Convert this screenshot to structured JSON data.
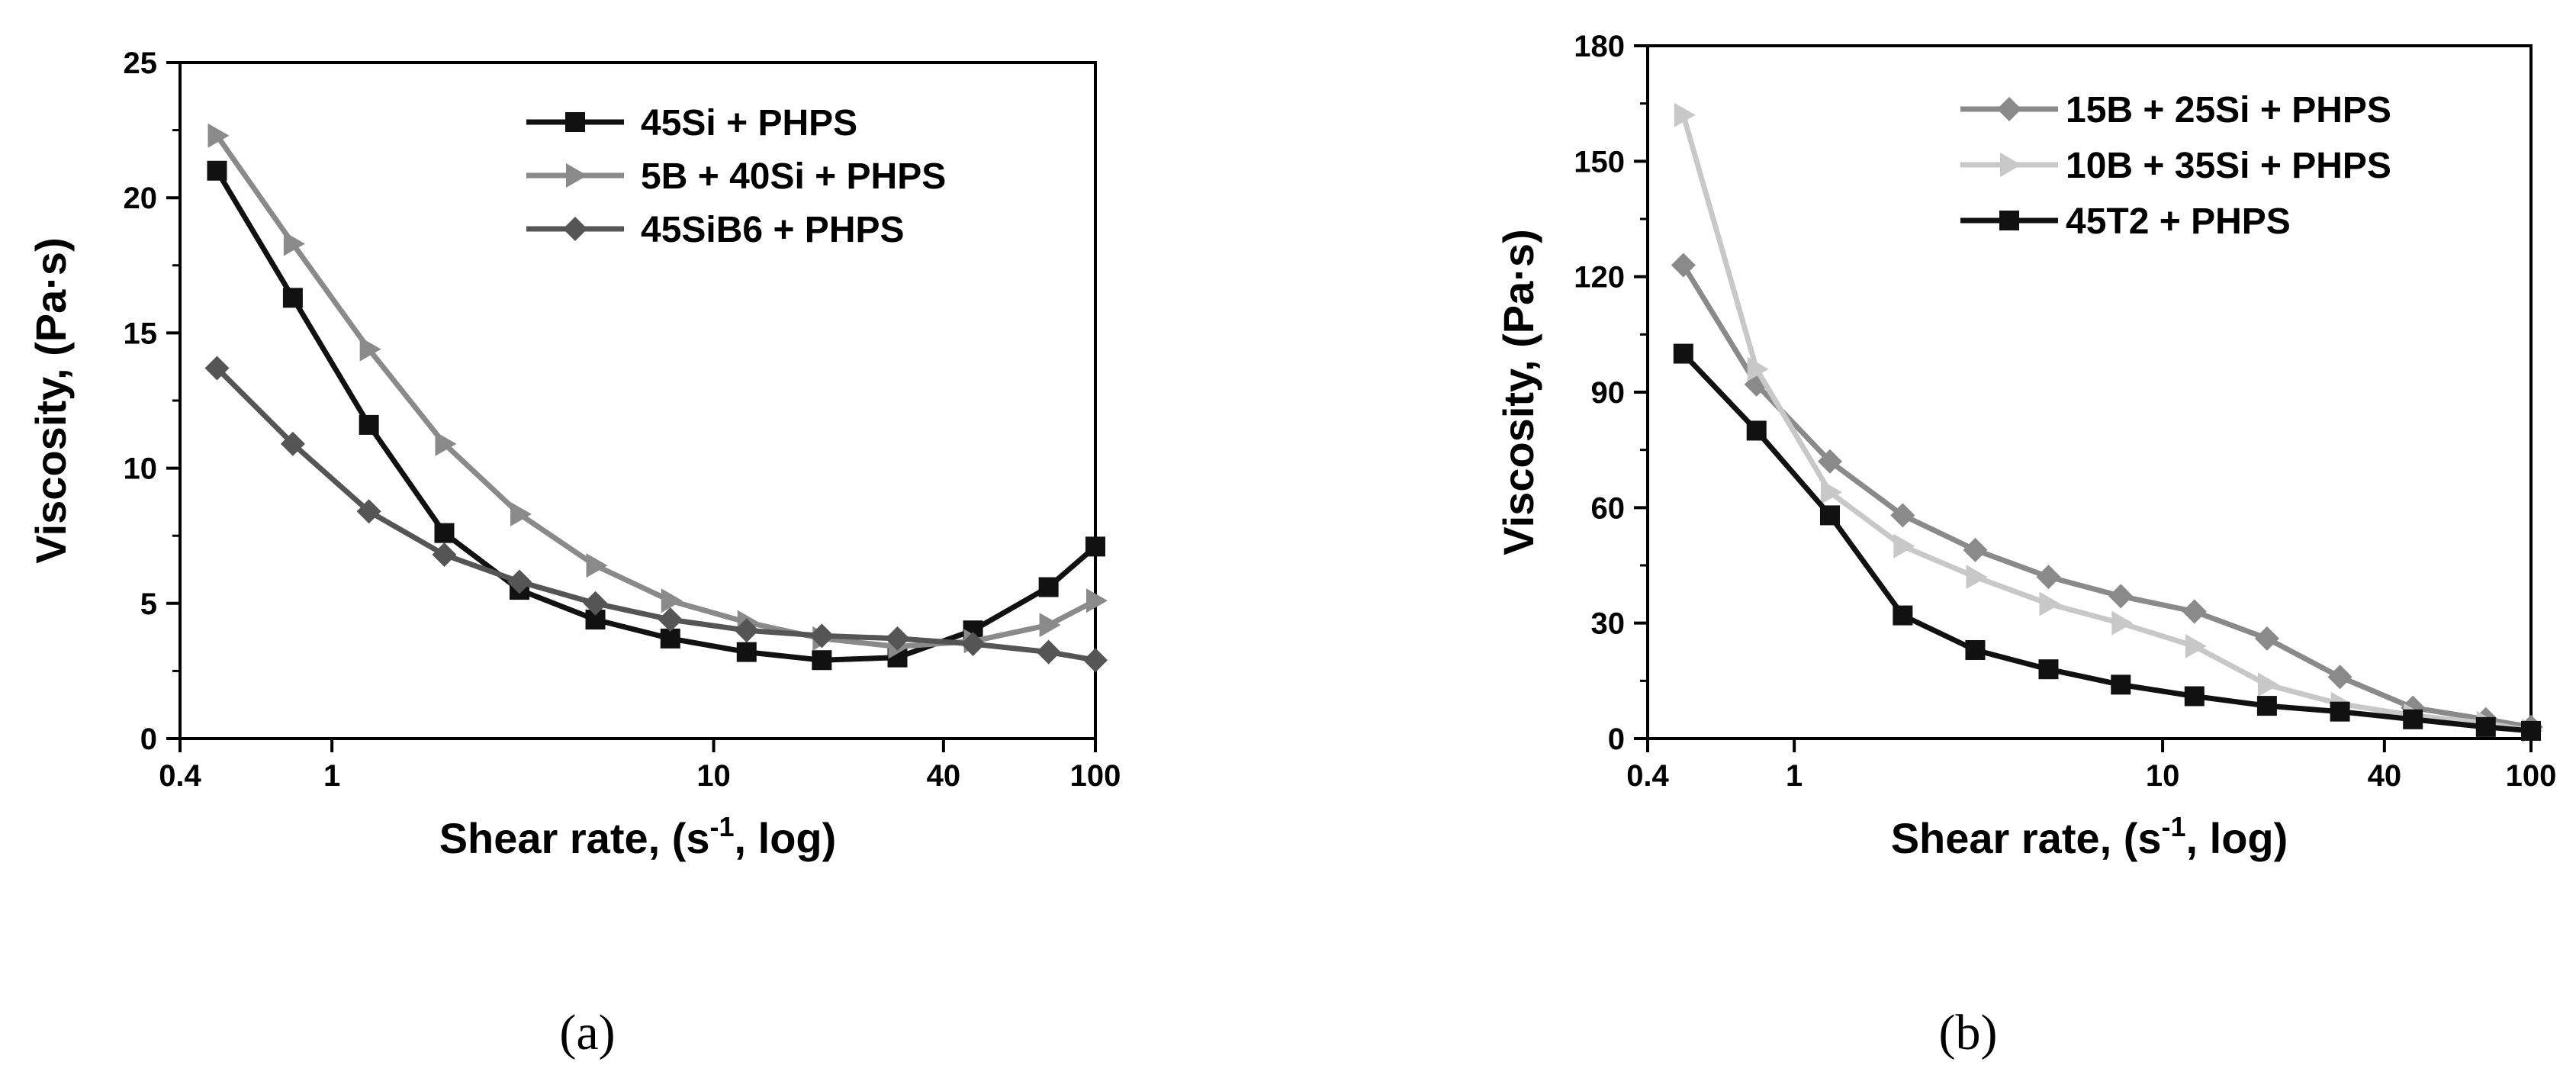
{
  "chart_data": [
    {
      "type": "line",
      "panel": "a",
      "caption": "(a)",
      "xlabel_main": "Shear rate, (s",
      "xlabel_sup": "-1",
      "xlabel_tail": ", log)",
      "ylabel": "Viscosity, (Pa·s)",
      "xscale": "log",
      "xlim": [
        0.4,
        100
      ],
      "ylim": [
        0,
        25
      ],
      "xticks": [
        0.4,
        1,
        10,
        40,
        100
      ],
      "xtick_labels": [
        "0.4",
        "1",
        "10",
        "40",
        "100"
      ],
      "yticks": [
        0,
        5,
        10,
        15,
        20,
        25
      ],
      "ytick_labels": [
        "0",
        "5",
        "10",
        "15",
        "20",
        "25"
      ],
      "legend_position": "top-right",
      "x": [
        0.5,
        0.79,
        1.25,
        1.97,
        3.1,
        4.9,
        7.7,
        12.2,
        19.2,
        30.3,
        47.8,
        75.4,
        100
      ],
      "series": [
        {
          "name": "45Si + PHPS",
          "marker": "square",
          "color": "#111111",
          "values": [
            21.0,
            16.3,
            11.6,
            7.6,
            5.5,
            4.4,
            3.7,
            3.2,
            2.9,
            3.0,
            4.0,
            5.6,
            7.1
          ]
        },
        {
          "name": "5B + 40Si + PHPS",
          "marker": "triangle-right",
          "color": "#8a8a8a",
          "values": [
            22.3,
            18.3,
            14.4,
            10.9,
            8.3,
            6.4,
            5.1,
            4.3,
            3.7,
            3.4,
            3.6,
            4.2,
            5.1
          ]
        },
        {
          "name": "45SiB6 + PHPS",
          "marker": "diamond",
          "color": "#555555",
          "values": [
            13.7,
            10.9,
            8.4,
            6.8,
            5.8,
            5.0,
            4.4,
            4.0,
            3.8,
            3.7,
            3.5,
            3.2,
            2.9
          ]
        }
      ]
    },
    {
      "type": "line",
      "panel": "b",
      "caption": "(b)",
      "xlabel_main": "Shear rate, (s",
      "xlabel_sup": "-1",
      "xlabel_tail": ", log)",
      "ylabel": "Viscosity, (Pa·s)",
      "xscale": "log",
      "xlim": [
        0.4,
        100
      ],
      "ylim": [
        0,
        180
      ],
      "xticks": [
        0.4,
        1,
        10,
        40,
        100
      ],
      "xtick_labels": [
        "0.4",
        "1",
        "10",
        "40",
        "100"
      ],
      "yticks": [
        0,
        30,
        60,
        90,
        120,
        150,
        180
      ],
      "ytick_labels": [
        "0",
        "30",
        "60",
        "90",
        "120",
        "150",
        "180"
      ],
      "legend_position": "top-right",
      "x": [
        0.5,
        0.79,
        1.25,
        1.97,
        3.1,
        4.9,
        7.7,
        12.2,
        19.2,
        30.3,
        47.8,
        75.4,
        100
      ],
      "series": [
        {
          "name": "15B + 25Si + PHPS",
          "marker": "diamond",
          "color": "#8a8a8a",
          "values": [
            123,
            92,
            72,
            58,
            49,
            42,
            37,
            33,
            26,
            16,
            8,
            5,
            3
          ]
        },
        {
          "name": "10B + 35Si + PHPS",
          "marker": "triangle-right",
          "color": "#c8c8c8",
          "values": [
            162,
            96,
            64,
            50,
            42,
            35,
            30,
            24,
            14,
            9,
            6,
            4,
            2
          ]
        },
        {
          "name": "45T2 + PHPS",
          "marker": "square",
          "color": "#111111",
          "values": [
            100,
            80,
            58,
            32,
            23,
            18,
            14,
            11,
            8.5,
            7,
            5,
            3,
            2
          ]
        }
      ]
    }
  ]
}
